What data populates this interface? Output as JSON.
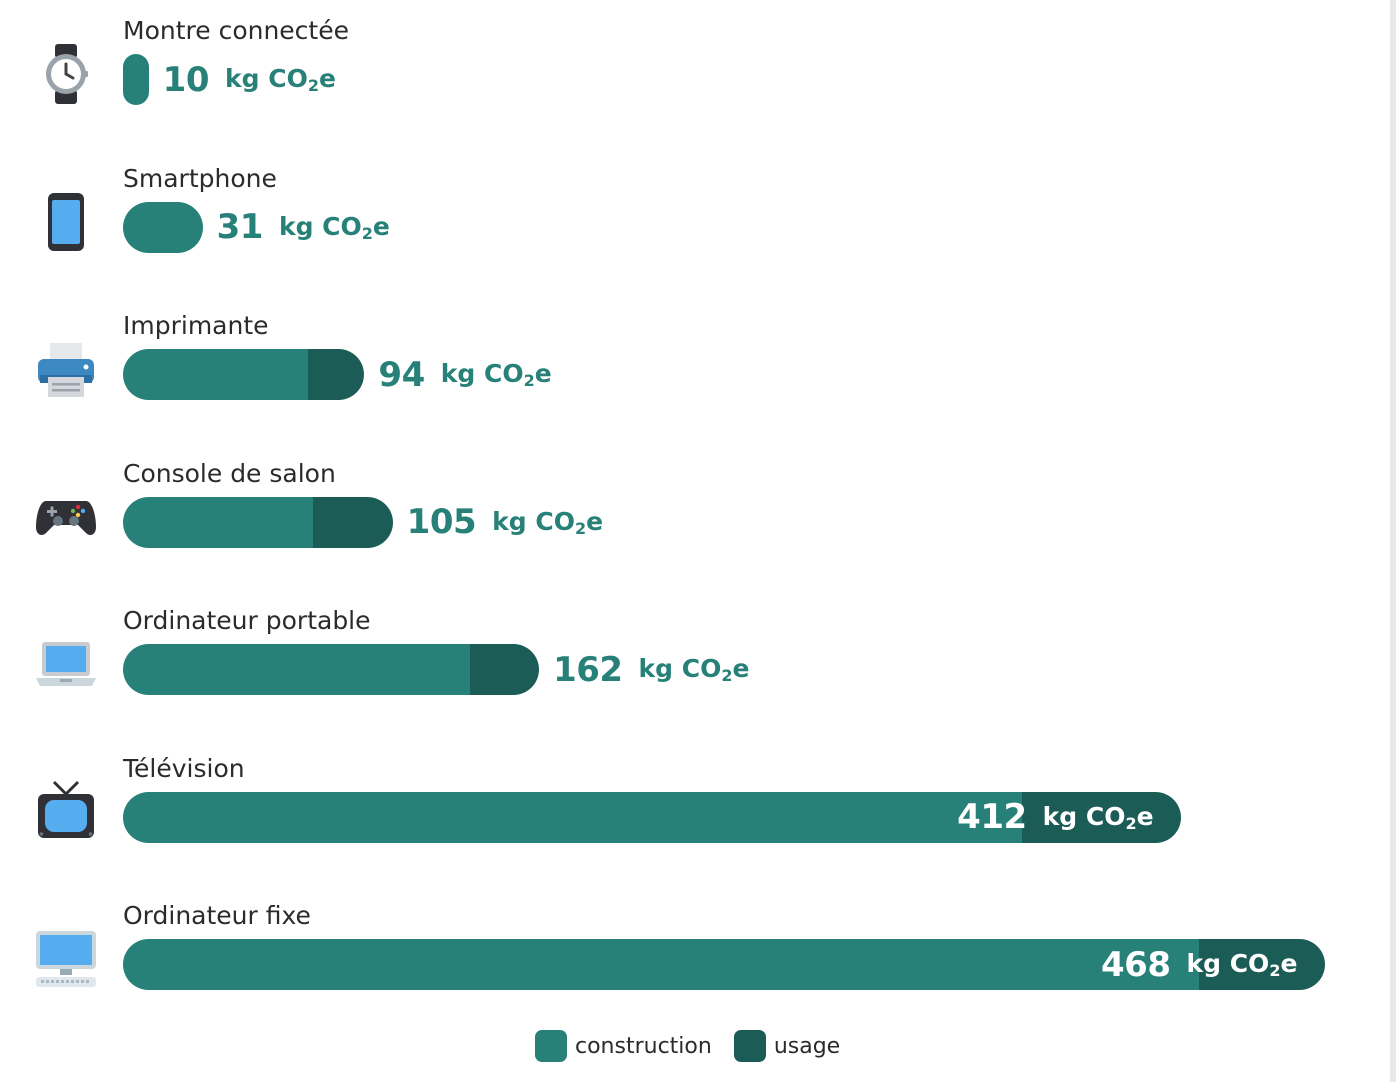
{
  "chart_data": {
    "type": "bar",
    "orientation": "horizontal",
    "stacked": true,
    "unit_text": "kg CO",
    "unit_sub": "2",
    "unit_suffix": "e",
    "categories": [
      "Montre connectée",
      "Smartphone",
      "Imprimante",
      "Console de salon",
      "Ordinateur portable",
      "Télévision",
      "Ordinateur fixe"
    ],
    "icons": [
      "watch-icon",
      "smartphone-icon",
      "printer-icon",
      "game-controller-icon",
      "laptop-icon",
      "television-icon",
      "desktop-computer-icon"
    ],
    "totals": [
      10,
      31,
      94,
      105,
      162,
      412,
      468
    ],
    "series": [
      {
        "name": "construction",
        "color": "#278178",
        "values": [
          10,
          31,
          72,
          74,
          135,
          350,
          419
        ]
      },
      {
        "name": "usage",
        "color": "#1c5c57",
        "values": [
          0,
          0,
          22,
          31,
          27,
          62,
          49
        ]
      }
    ],
    "legend_position": "bottom-center",
    "grid": false
  }
}
